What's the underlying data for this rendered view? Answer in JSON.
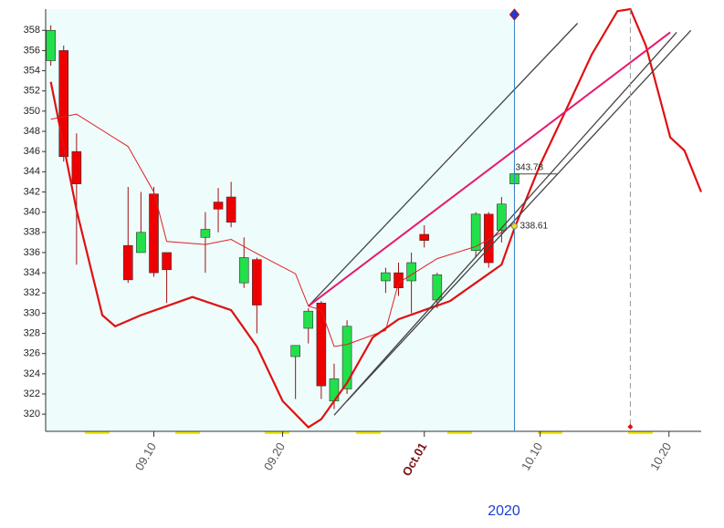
{
  "chart_data": {
    "type": "candlestick",
    "xlabel": "2020",
    "xlim": [
      1.6,
      52.5
    ],
    "ylim": [
      318.3,
      360.1
    ],
    "yticks": [
      320,
      322,
      324,
      326,
      328,
      330,
      332,
      334,
      336,
      338,
      340,
      342,
      344,
      346,
      348,
      350,
      352,
      354,
      356,
      358
    ],
    "xticks": [
      {
        "value": 10,
        "label": "09.10"
      },
      {
        "value": 20,
        "label": "09.20"
      },
      {
        "value": 31,
        "label": "Oct.01"
      },
      {
        "value": 40,
        "label": "10.10"
      },
      {
        "value": 50,
        "label": "10.20"
      }
    ],
    "up_color": "#22e04a",
    "down_color": "#ee0000",
    "x": [
      2,
      3,
      4,
      8,
      9,
      10,
      11,
      14,
      15,
      16,
      17,
      18,
      21,
      22,
      23,
      24,
      25,
      28,
      29,
      30,
      31,
      32,
      35,
      36,
      37,
      38
    ],
    "open": [
      355,
      356,
      346,
      336.7,
      336,
      341.8,
      336,
      337.5,
      341,
      341.5,
      333,
      335.3,
      325.7,
      328.5,
      331,
      321.3,
      322.5,
      333.2,
      334,
      333.2,
      337.8,
      331.3,
      336.2,
      339.8,
      338.2,
      342.8
    ],
    "high": [
      358.5,
      356.5,
      347.8,
      342.5,
      342,
      342.5,
      336,
      340,
      342.4,
      343,
      337.5,
      335.5,
      326.8,
      330.5,
      331.2,
      325,
      329.3,
      334.5,
      335,
      336,
      338.7,
      334,
      340,
      340,
      341.5,
      344.5
    ],
    "low": [
      354.5,
      345,
      334.8,
      333,
      336,
      333.6,
      331,
      334,
      338,
      338.5,
      332.5,
      328,
      321.5,
      327,
      321.5,
      320.5,
      322,
      332,
      331.7,
      330,
      336.5,
      330.5,
      335.5,
      334.5,
      337,
      342.2
    ],
    "close": [
      358,
      345.5,
      342.8,
      333.3,
      338,
      334,
      334.3,
      338.3,
      340.3,
      339,
      335.5,
      330.8,
      326.8,
      330.2,
      322.8,
      323.5,
      328.7,
      334,
      332.5,
      335,
      337.2,
      333.8,
      339.8,
      335,
      340.8,
      343.8
    ],
    "lines": [
      {
        "color": "#e02020",
        "width": 1,
        "x": [
          2,
          4,
          8,
          10,
          11,
          14,
          16,
          18,
          21,
          22,
          23,
          24,
          25,
          28,
          29,
          31,
          32,
          35,
          37,
          38
        ],
        "y": [
          349.2,
          349.7,
          346.5,
          342,
          337.1,
          336.8,
          337.3,
          335.9,
          333.9,
          330.7,
          330.3,
          326.7,
          326.9,
          328.3,
          333,
          334.6,
          335.4,
          336.6,
          338,
          338.9
        ]
      },
      {
        "color": "#e01010",
        "width": 2.2,
        "x": [
          2,
          4,
          6,
          7,
          9,
          11,
          13,
          16,
          18,
          20,
          22,
          23,
          25,
          27,
          29,
          31,
          33,
          35,
          37,
          38,
          40,
          42,
          44,
          46,
          47,
          48.2,
          50.1,
          51.2,
          52.5
        ],
        "y": [
          352.9,
          340.2,
          329.8,
          328.7,
          329.8,
          330.7,
          331.6,
          330.3,
          326.7,
          321.3,
          318.7,
          319.5,
          323.1,
          327.6,
          329.4,
          330.3,
          331.2,
          333,
          334.8,
          338.4,
          344.7,
          350.1,
          355.6,
          359.9,
          360.1,
          356.5,
          347.4,
          346.1,
          342
        ]
      },
      {
        "color": "#444444",
        "width": 1.3,
        "x": [
          22,
          42.9
        ],
        "y": [
          330.7,
          358.7
        ]
      },
      {
        "color": "#444444",
        "width": 1.3,
        "x": [
          24,
          50.6
        ],
        "y": [
          319.9,
          357.8
        ]
      },
      {
        "color": "#444444",
        "width": 1.3,
        "x": [
          25,
          51.7
        ],
        "y": [
          321.3,
          358
        ]
      },
      {
        "color": "#444444",
        "width": 1,
        "x": [
          38,
          41.4
        ],
        "y": [
          343.78,
          343.78
        ]
      },
      {
        "color": "#e8186e",
        "width": 2,
        "x": [
          22,
          50.1
        ],
        "y": [
          330.7,
          357.8
        ]
      }
    ],
    "annotations": [
      {
        "value": 343.78,
        "x": 38
      },
      {
        "value": 338.61,
        "x": 38
      }
    ],
    "cursor_x": 38,
    "dashed_x": 47
  }
}
